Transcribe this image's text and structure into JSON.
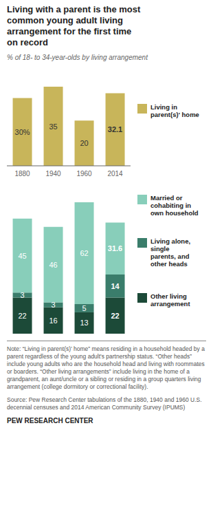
{
  "chart_data": [
    {
      "type": "bar",
      "title": "Living with a parent is the most\ncommon young adult living\narrangement for the first time\non record",
      "subtitle": "% of 18- to 34-year-olds by living arrangement",
      "categories": [
        "1880",
        "1940",
        "1960",
        "2014"
      ],
      "series": [
        {
          "name": "Living in\nparent(s)' home",
          "color": "#C8B55A",
          "values": [
            30,
            35,
            20,
            32.1
          ],
          "value_labels": [
            "30%",
            "35",
            "20",
            "32.1"
          ]
        }
      ],
      "ylim": [
        0,
        42
      ],
      "data_labels": true,
      "tick_labels": "x",
      "legend": "right"
    },
    {
      "type": "bar",
      "categories": [
        "1880",
        "1940",
        "1960",
        "2014"
      ],
      "series": [
        {
          "name": "Other living\narrangement",
          "color": "#1C4A38",
          "values": [
            22,
            16,
            13,
            22
          ]
        },
        {
          "name": "Living alone,\nsingle\nparents, and\nother heads",
          "color": "#3A7D6B",
          "values": [
            3,
            3,
            5,
            14
          ]
        },
        {
          "name": "Married or\ncohabiting in\nown household",
          "color": "#88CEBA",
          "values": [
            45,
            46,
            62,
            31.6
          ]
        }
      ],
      "stacked": true,
      "ylim": [
        0,
        90
      ],
      "data_labels": true,
      "tick_labels": false,
      "legend": "right",
      "annotations": [
        "Note: “Living in parent(s)’ home” means residing in a household headed by a parent regardless of the young adult's partnership status. “Other heads” include young adults who are the household head and living with roommates or boarders. “Other living arrangements” include living in the home of a grandparent, an aunt/uncle or a sibling or residing in a group quarters living arrangement (college dormitory or correctional facility).",
        "Source: Pew Research Center tabulations of the 1880, 1940 and 1960 U.S. decennial censuses and 2014 American Community Survey (IPUMS)",
        "PEW RESEARCH CENTER"
      ]
    }
  ]
}
